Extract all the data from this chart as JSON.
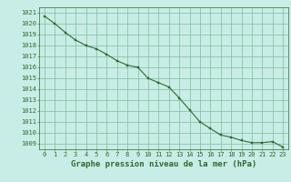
{
  "x": [
    0,
    1,
    2,
    3,
    4,
    5,
    6,
    7,
    8,
    9,
    10,
    11,
    12,
    13,
    14,
    15,
    16,
    17,
    18,
    19,
    20,
    21,
    22,
    23
  ],
  "y": [
    1020.7,
    1020.0,
    1019.2,
    1018.5,
    1018.0,
    1017.7,
    1017.2,
    1016.6,
    1016.2,
    1016.0,
    1015.0,
    1014.6,
    1014.2,
    1013.2,
    1012.1,
    1011.0,
    1010.4,
    1009.8,
    1009.6,
    1009.3,
    1009.1,
    1009.1,
    1009.2,
    1008.7
  ],
  "ylim": [
    1008.5,
    1021.5
  ],
  "xlim": [
    -0.5,
    23.5
  ],
  "yticks": [
    1009,
    1010,
    1011,
    1012,
    1013,
    1014,
    1015,
    1016,
    1017,
    1018,
    1019,
    1020,
    1021
  ],
  "xticks": [
    0,
    1,
    2,
    3,
    4,
    5,
    6,
    7,
    8,
    9,
    10,
    11,
    12,
    13,
    14,
    15,
    16,
    17,
    18,
    19,
    20,
    21,
    22,
    23
  ],
  "line_color": "#2d6a2d",
  "marker_color": "#2d6a2d",
  "bg_color": "#c8ece6",
  "grid_color": "#7bbf9a",
  "xlabel": "Graphe pression niveau de la mer (hPa)",
  "xlabel_color": "#2d6a2d",
  "tick_color": "#2d6a2d",
  "xlabel_fontsize": 6.5,
  "tick_fontsize": 5.0
}
